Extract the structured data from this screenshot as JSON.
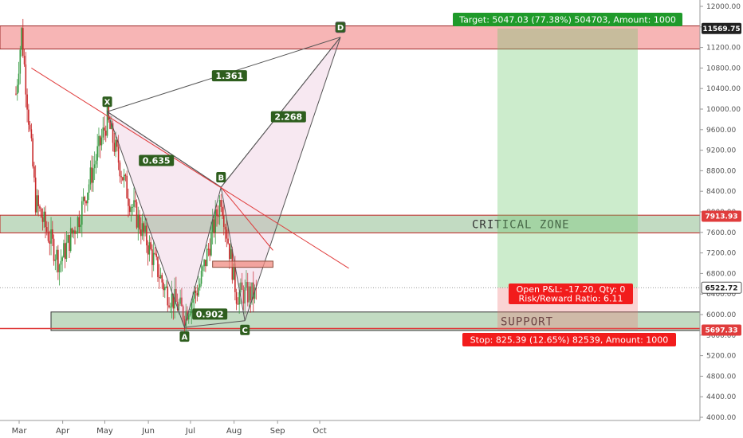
{
  "chart_data": {
    "type": "candlestick",
    "x_ticks": [
      "Mar",
      "Apr",
      "May",
      "Jun",
      "Jul",
      "Aug",
      "Sep",
      "Oct"
    ],
    "y_ticks": [
      12000,
      11600,
      11200,
      10800,
      10400,
      10000,
      9600,
      9200,
      8800,
      8400,
      8000,
      7600,
      7200,
      6800,
      6400,
      6000,
      5600,
      5200,
      4800,
      4400,
      4000
    ],
    "y_tick_labels": [
      "12000.00",
      "11600.00",
      "11200.00",
      "10800.00",
      "10400.00",
      "10000.00",
      "9600.00",
      "9200.00",
      "8800.00",
      "8400.00",
      "8000.00",
      "7600.00",
      "7200.00",
      "6800.00",
      "6400.00",
      "6000.00",
      "5600.00",
      "5200.00",
      "4800.00",
      "4400.00",
      "4000.00"
    ],
    "ylim": [
      3950,
      12130
    ],
    "price_tags": [
      {
        "label": "11569.75",
        "value": 11569.75,
        "color": "#222222",
        "text_color": "#ffffff"
      },
      {
        "label": "7913.93",
        "value": 7913.93,
        "color": "#e03c3c",
        "text_color": "#ffffff"
      },
      {
        "label": "6522.72",
        "value": 6522.72,
        "color": "#ffffff",
        "text_color": "#222222"
      },
      {
        "label": "5697.33",
        "value": 5697.33,
        "color": "#e03c3c",
        "text_color": "#ffffff"
      }
    ],
    "harmonic_points": [
      {
        "label": "X",
        "date": "2018-05-05",
        "price": 9950
      },
      {
        "label": "A",
        "date": "2018-06-29",
        "price": 5750
      },
      {
        "label": "B",
        "date": "2018-07-25",
        "price": 8480
      },
      {
        "label": "C",
        "date": "2018-08-11",
        "price": 5880
      },
      {
        "label": "D",
        "date": "2018-10-18",
        "price": 11400
      }
    ],
    "ratios": [
      {
        "label": "1.361",
        "date": "2018-07-31",
        "price": 10650
      },
      {
        "label": "0.635",
        "date": "2018-06-09",
        "price": 9000
      },
      {
        "label": "2.268",
        "date": "2018-09-11",
        "price": 9850
      },
      {
        "label": "0.902",
        "date": "2018-07-17",
        "price": 6010
      }
    ],
    "zones": [
      {
        "name": "resistance",
        "from": 11170,
        "to": 11620,
        "label": ""
      },
      {
        "name": "critical",
        "from": 7590,
        "to": 7935,
        "label": "CRITICAL ZONE"
      },
      {
        "name": "support",
        "from": 5690,
        "to": 6050,
        "label": "SUPPORT"
      }
    ],
    "trendlines": [
      {
        "from_date": "2018-03-12",
        "from_price": 10800,
        "to_date": "2018-10-24",
        "to_price": 6900
      },
      {
        "from_date": "2018-07-25",
        "from_price": 8480,
        "to_date": "2018-08-31",
        "to_price": 7250
      }
    ],
    "position": {
      "entry": 6522.72,
      "target": 11569.75,
      "stop": 5697.33,
      "target_label": "Target: 5047.03 (77.38%) 504703, Amount: 1000",
      "stop_label": "Stop: 825.39 (12.65%) 82539, Amount: 1000",
      "pnl_label": "Open P&L: -17.20, Qty: 0",
      "rr_label": "Risk/Reward Ratio: 6.11"
    },
    "entry_box": {
      "from_date": "2018-07-19",
      "to_date": "2018-08-31",
      "from_price": 6920,
      "to_price": 7040
    },
    "ohlc_samples": [
      {
        "date": "2018-03-01",
        "close": 10300
      },
      {
        "date": "2018-03-05",
        "close": 11500
      },
      {
        "date": "2018-03-15",
        "close": 8200
      },
      {
        "date": "2018-04-01",
        "close": 7000
      },
      {
        "date": "2018-04-15",
        "close": 7900
      },
      {
        "date": "2018-05-05",
        "close": 9800
      },
      {
        "date": "2018-05-20",
        "close": 8300
      },
      {
        "date": "2018-06-01",
        "close": 7500
      },
      {
        "date": "2018-06-15",
        "close": 6500
      },
      {
        "date": "2018-06-29",
        "close": 6000
      },
      {
        "date": "2018-07-10",
        "close": 6600
      },
      {
        "date": "2018-07-25",
        "close": 8300
      },
      {
        "date": "2018-08-05",
        "close": 6400
      },
      {
        "date": "2018-08-15",
        "close": 6400
      }
    ]
  }
}
